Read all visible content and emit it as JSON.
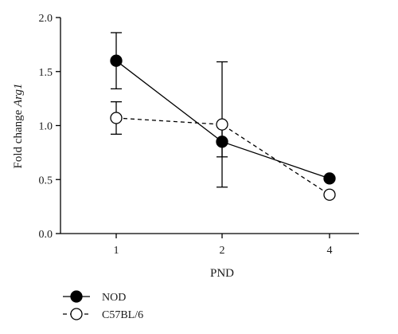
{
  "chart_data": {
    "type": "line",
    "xlabel": "PND",
    "ylabel_prefix": "Fold change ",
    "ylabel_gene": "Arg1",
    "categories": [
      "1",
      "2",
      "4"
    ],
    "ylim": [
      0,
      2.0
    ],
    "yticks": [
      "0.0",
      "0.5",
      "1.0",
      "1.5",
      "2.0"
    ],
    "grid": false,
    "legend_position": "bottom-left",
    "series": [
      {
        "name": "NOD",
        "line_style": "solid",
        "marker": "filled-circle",
        "color": "#000000",
        "values": [
          1.6,
          0.85,
          0.51
        ],
        "error": [
          0.26,
          0.14,
          null
        ]
      },
      {
        "name": "C57BL/6",
        "line_style": "dashed",
        "marker": "open-circle",
        "color": "#000000",
        "values": [
          1.07,
          1.01,
          0.36
        ],
        "error": [
          0.15,
          0.58,
          null
        ]
      }
    ]
  }
}
